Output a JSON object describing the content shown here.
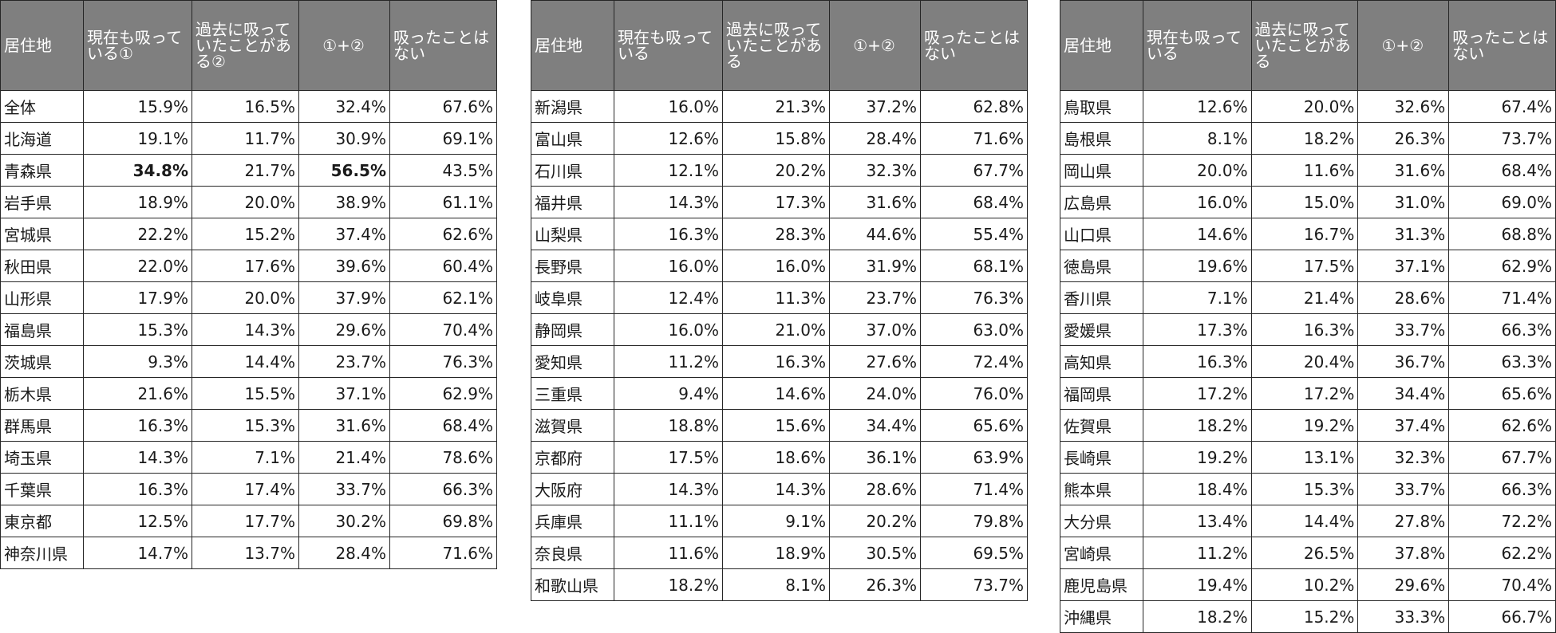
{
  "headers": {
    "tables": [
      [
        "居住地",
        "現在も吸っている①",
        "過去に吸っていたことがある②",
        "①+②",
        "吸ったことはない"
      ],
      [
        "居住地",
        "現在も吸っている",
        "過去に吸っていたことがある",
        "①+②",
        "吸ったことはない"
      ],
      [
        "居住地",
        "現在も吸っている",
        "過去に吸っていたことがある",
        "①+②",
        "吸ったことはない"
      ]
    ]
  },
  "tables": [
    {
      "rows": [
        {
          "pref": "全体",
          "current": "15.9%",
          "past": "16.5%",
          "sum": "32.4%",
          "never": "67.6%"
        },
        {
          "pref": "北海道",
          "current": "19.1%",
          "past": "11.7%",
          "sum": "30.9%",
          "never": "69.1%"
        },
        {
          "pref": "青森県",
          "current": "34.8%",
          "past": "21.7%",
          "sum": "56.5%",
          "never": "43.5%",
          "bold": [
            "current",
            "sum"
          ]
        },
        {
          "pref": "岩手県",
          "current": "18.9%",
          "past": "20.0%",
          "sum": "38.9%",
          "never": "61.1%"
        },
        {
          "pref": "宮城県",
          "current": "22.2%",
          "past": "15.2%",
          "sum": "37.4%",
          "never": "62.6%"
        },
        {
          "pref": "秋田県",
          "current": "22.0%",
          "past": "17.6%",
          "sum": "39.6%",
          "never": "60.4%"
        },
        {
          "pref": "山形県",
          "current": "17.9%",
          "past": "20.0%",
          "sum": "37.9%",
          "never": "62.1%"
        },
        {
          "pref": "福島県",
          "current": "15.3%",
          "past": "14.3%",
          "sum": "29.6%",
          "never": "70.4%"
        },
        {
          "pref": "茨城県",
          "current": "9.3%",
          "past": "14.4%",
          "sum": "23.7%",
          "never": "76.3%"
        },
        {
          "pref": "栃木県",
          "current": "21.6%",
          "past": "15.5%",
          "sum": "37.1%",
          "never": "62.9%"
        },
        {
          "pref": "群馬県",
          "current": "16.3%",
          "past": "15.3%",
          "sum": "31.6%",
          "never": "68.4%"
        },
        {
          "pref": "埼玉県",
          "current": "14.3%",
          "past": "7.1%",
          "sum": "21.4%",
          "never": "78.6%"
        },
        {
          "pref": "千葉県",
          "current": "16.3%",
          "past": "17.4%",
          "sum": "33.7%",
          "never": "66.3%"
        },
        {
          "pref": "東京都",
          "current": "12.5%",
          "past": "17.7%",
          "sum": "30.2%",
          "never": "69.8%"
        },
        {
          "pref": "神奈川県",
          "current": "14.7%",
          "past": "13.7%",
          "sum": "28.4%",
          "never": "71.6%"
        }
      ]
    },
    {
      "rows": [
        {
          "pref": "新潟県",
          "current": "16.0%",
          "past": "21.3%",
          "sum": "37.2%",
          "never": "62.8%"
        },
        {
          "pref": "富山県",
          "current": "12.6%",
          "past": "15.8%",
          "sum": "28.4%",
          "never": "71.6%"
        },
        {
          "pref": "石川県",
          "current": "12.1%",
          "past": "20.2%",
          "sum": "32.3%",
          "never": "67.7%"
        },
        {
          "pref": "福井県",
          "current": "14.3%",
          "past": "17.3%",
          "sum": "31.6%",
          "never": "68.4%"
        },
        {
          "pref": "山梨県",
          "current": "16.3%",
          "past": "28.3%",
          "sum": "44.6%",
          "never": "55.4%"
        },
        {
          "pref": "長野県",
          "current": "16.0%",
          "past": "16.0%",
          "sum": "31.9%",
          "never": "68.1%"
        },
        {
          "pref": "岐阜県",
          "current": "12.4%",
          "past": "11.3%",
          "sum": "23.7%",
          "never": "76.3%"
        },
        {
          "pref": "静岡県",
          "current": "16.0%",
          "past": "21.0%",
          "sum": "37.0%",
          "never": "63.0%"
        },
        {
          "pref": "愛知県",
          "current": "11.2%",
          "past": "16.3%",
          "sum": "27.6%",
          "never": "72.4%"
        },
        {
          "pref": "三重県",
          "current": "9.4%",
          "past": "14.6%",
          "sum": "24.0%",
          "never": "76.0%"
        },
        {
          "pref": "滋賀県",
          "current": "18.8%",
          "past": "15.6%",
          "sum": "34.4%",
          "never": "65.6%"
        },
        {
          "pref": "京都府",
          "current": "17.5%",
          "past": "18.6%",
          "sum": "36.1%",
          "never": "63.9%"
        },
        {
          "pref": "大阪府",
          "current": "14.3%",
          "past": "14.3%",
          "sum": "28.6%",
          "never": "71.4%"
        },
        {
          "pref": "兵庫県",
          "current": "11.1%",
          "past": "9.1%",
          "sum": "20.2%",
          "never": "79.8%"
        },
        {
          "pref": "奈良県",
          "current": "11.6%",
          "past": "18.9%",
          "sum": "30.5%",
          "never": "69.5%"
        },
        {
          "pref": "和歌山県",
          "current": "18.2%",
          "past": "8.1%",
          "sum": "26.3%",
          "never": "73.7%"
        }
      ]
    },
    {
      "rows": [
        {
          "pref": "鳥取県",
          "current": "12.6%",
          "past": "20.0%",
          "sum": "32.6%",
          "never": "67.4%"
        },
        {
          "pref": "島根県",
          "current": "8.1%",
          "past": "18.2%",
          "sum": "26.3%",
          "never": "73.7%"
        },
        {
          "pref": "岡山県",
          "current": "20.0%",
          "past": "11.6%",
          "sum": "31.6%",
          "never": "68.4%"
        },
        {
          "pref": "広島県",
          "current": "16.0%",
          "past": "15.0%",
          "sum": "31.0%",
          "never": "69.0%"
        },
        {
          "pref": "山口県",
          "current": "14.6%",
          "past": "16.7%",
          "sum": "31.3%",
          "never": "68.8%"
        },
        {
          "pref": "徳島県",
          "current": "19.6%",
          "past": "17.5%",
          "sum": "37.1%",
          "never": "62.9%"
        },
        {
          "pref": "香川県",
          "current": "7.1%",
          "past": "21.4%",
          "sum": "28.6%",
          "never": "71.4%"
        },
        {
          "pref": "愛媛県",
          "current": "17.3%",
          "past": "16.3%",
          "sum": "33.7%",
          "never": "66.3%"
        },
        {
          "pref": "高知県",
          "current": "16.3%",
          "past": "20.4%",
          "sum": "36.7%",
          "never": "63.3%"
        },
        {
          "pref": "福岡県",
          "current": "17.2%",
          "past": "17.2%",
          "sum": "34.4%",
          "never": "65.6%"
        },
        {
          "pref": "佐賀県",
          "current": "18.2%",
          "past": "19.2%",
          "sum": "37.4%",
          "never": "62.6%"
        },
        {
          "pref": "長崎県",
          "current": "19.2%",
          "past": "13.1%",
          "sum": "32.3%",
          "never": "67.7%"
        },
        {
          "pref": "熊本県",
          "current": "18.4%",
          "past": "15.3%",
          "sum": "33.7%",
          "never": "66.3%"
        },
        {
          "pref": "大分県",
          "current": "13.4%",
          "past": "14.4%",
          "sum": "27.8%",
          "never": "72.2%"
        },
        {
          "pref": "宮崎県",
          "current": "11.2%",
          "past": "26.5%",
          "sum": "37.8%",
          "never": "62.2%"
        },
        {
          "pref": "鹿児島県",
          "current": "19.4%",
          "past": "10.2%",
          "sum": "29.6%",
          "never": "70.4%"
        },
        {
          "pref": "沖縄県",
          "current": "18.2%",
          "past": "15.2%",
          "sum": "33.3%",
          "never": "66.7%"
        }
      ]
    }
  ]
}
